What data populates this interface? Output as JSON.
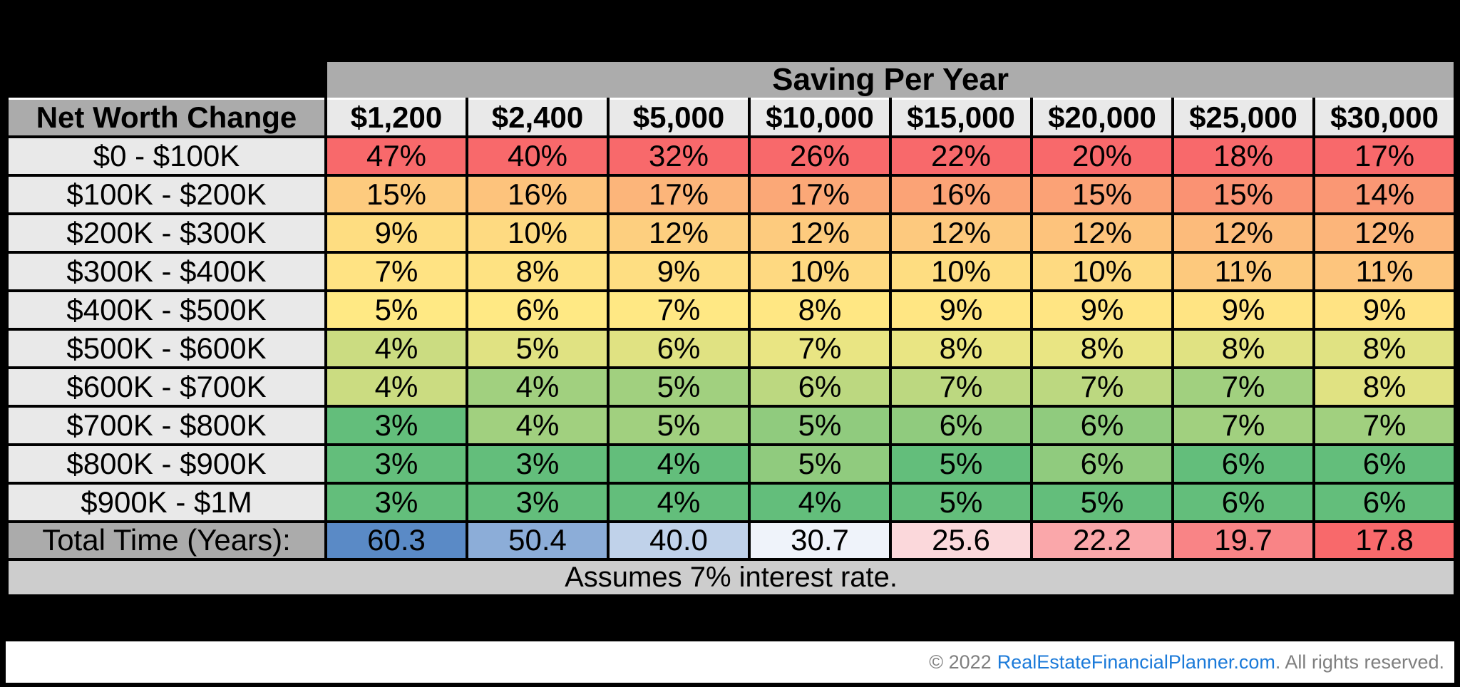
{
  "table": {
    "band_title": "Saving Per Year",
    "corner_label": "Net Worth Change",
    "columns": [
      "$1,200",
      "$2,400",
      "$5,000",
      "$10,000",
      "$15,000",
      "$20,000",
      "$25,000",
      "$30,000"
    ],
    "rows": [
      {
        "label": "$0 - $100K",
        "values": [
          47,
          40,
          32,
          26,
          22,
          20,
          18,
          17
        ],
        "display": [
          "47%",
          "40%",
          "32%",
          "26%",
          "22%",
          "20%",
          "18%",
          "17%"
        ]
      },
      {
        "label": "$100K - $200K",
        "values": [
          15,
          16,
          17,
          17,
          16,
          15,
          15,
          14
        ],
        "display": [
          "15%",
          "16%",
          "17%",
          "17%",
          "16%",
          "15%",
          "15%",
          "14%"
        ]
      },
      {
        "label": "$200K - $300K",
        "values": [
          9,
          10,
          12,
          12,
          12,
          12,
          12,
          12
        ],
        "display": [
          "9%",
          "10%",
          "12%",
          "12%",
          "12%",
          "12%",
          "12%",
          "12%"
        ]
      },
      {
        "label": "$300K - $400K",
        "values": [
          7,
          8,
          9,
          10,
          10,
          10,
          11,
          11
        ],
        "display": [
          "7%",
          "8%",
          "9%",
          "10%",
          "10%",
          "10%",
          "11%",
          "11%"
        ]
      },
      {
        "label": "$400K - $500K",
        "values": [
          5,
          6,
          7,
          8,
          9,
          9,
          9,
          9
        ],
        "display": [
          "5%",
          "6%",
          "7%",
          "8%",
          "9%",
          "9%",
          "9%",
          "9%"
        ]
      },
      {
        "label": "$500K - $600K",
        "values": [
          4,
          5,
          6,
          7,
          8,
          8,
          8,
          8
        ],
        "display": [
          "4%",
          "5%",
          "6%",
          "7%",
          "8%",
          "8%",
          "8%",
          "8%"
        ]
      },
      {
        "label": "$600K - $700K",
        "values": [
          4,
          4,
          5,
          6,
          7,
          7,
          7,
          8
        ],
        "display": [
          "4%",
          "4%",
          "5%",
          "6%",
          "7%",
          "7%",
          "7%",
          "8%"
        ]
      },
      {
        "label": "$700K - $800K",
        "values": [
          3,
          4,
          5,
          5,
          6,
          6,
          7,
          7
        ],
        "display": [
          "3%",
          "4%",
          "5%",
          "5%",
          "6%",
          "6%",
          "7%",
          "7%"
        ]
      },
      {
        "label": "$800K - $900K",
        "values": [
          3,
          3,
          4,
          5,
          5,
          6,
          6,
          6
        ],
        "display": [
          "3%",
          "3%",
          "4%",
          "5%",
          "5%",
          "6%",
          "6%",
          "6%"
        ]
      },
      {
        "label": "$900K - $1M",
        "values": [
          3,
          3,
          4,
          4,
          5,
          5,
          6,
          6
        ],
        "display": [
          "3%",
          "3%",
          "4%",
          "4%",
          "5%",
          "5%",
          "6%",
          "6%"
        ]
      }
    ],
    "total_row": {
      "label": "Total Time (Years):",
      "values": [
        60.3,
        50.4,
        40.0,
        30.7,
        25.6,
        22.2,
        19.7,
        17.8
      ],
      "display": [
        "60.3",
        "50.4",
        "40.0",
        "30.7",
        "25.6",
        "22.2",
        "19.7",
        "17.8"
      ]
    },
    "note": "Assumes 7% interest rate."
  },
  "footer": {
    "prefix": "© 2022",
    "link_text": "RealEstateFinancialPlanner.com",
    "suffix": ". All rights reserved."
  },
  "colors": {
    "page_bg": "#000000",
    "band_bg": "#ACACAC",
    "corner_bg": "#ABABAB",
    "header_cell_bg": "#E9E9E9",
    "row_label_bg": "#E9E9E9",
    "total_label_bg": "#ABABAB",
    "note_bg": "#CDCDCD",
    "footer_bg": "#FFFFFF",
    "footer_text": "#7F7F7F",
    "link": "#1B7AD9",
    "scale_percent": {
      "low": "#63BE7B",
      "mid": "#FFEB84",
      "high": "#F8696B"
    },
    "scale_time": {
      "low": "#F8696B",
      "mid": "#FCFCFF",
      "high": "#5A8AC6"
    }
  },
  "chart_data": {
    "type": "heatmap",
    "title": "Saving Per Year",
    "x_label": "Saving Per Year",
    "y_label": "Net Worth Change",
    "x_categories": [
      "$1,200",
      "$2,400",
      "$5,000",
      "$10,000",
      "$15,000",
      "$20,000",
      "$25,000",
      "$30,000"
    ],
    "y_categories": [
      "$0 - $100K",
      "$100K - $200K",
      "$200K - $300K",
      "$300K - $400K",
      "$400K - $500K",
      "$500K - $600K",
      "$600K - $700K",
      "$700K - $800K",
      "$800K - $900K",
      "$900K - $1M"
    ],
    "matrix_percent": [
      [
        47,
        40,
        32,
        26,
        22,
        20,
        18,
        17
      ],
      [
        15,
        16,
        17,
        17,
        16,
        15,
        15,
        14
      ],
      [
        9,
        10,
        12,
        12,
        12,
        12,
        12,
        12
      ],
      [
        7,
        8,
        9,
        10,
        10,
        10,
        11,
        11
      ],
      [
        5,
        6,
        7,
        8,
        9,
        9,
        9,
        9
      ],
      [
        4,
        5,
        6,
        7,
        8,
        8,
        8,
        8
      ],
      [
        4,
        4,
        5,
        6,
        7,
        7,
        7,
        8
      ],
      [
        3,
        4,
        5,
        5,
        6,
        6,
        7,
        7
      ],
      [
        3,
        3,
        4,
        5,
        5,
        6,
        6,
        6
      ],
      [
        3,
        3,
        4,
        4,
        5,
        5,
        6,
        6
      ]
    ],
    "total_time_years": [
      60.3,
      50.4,
      40.0,
      30.7,
      25.6,
      22.2,
      19.7,
      17.8
    ],
    "annotations": [
      "Assumes 7% interest rate."
    ],
    "color_scale_notes": "Percent cells: per-column 3-color scale green(min)-yellow(median)-red(max). Total row: red(min)-white(median)-blue(max)."
  }
}
